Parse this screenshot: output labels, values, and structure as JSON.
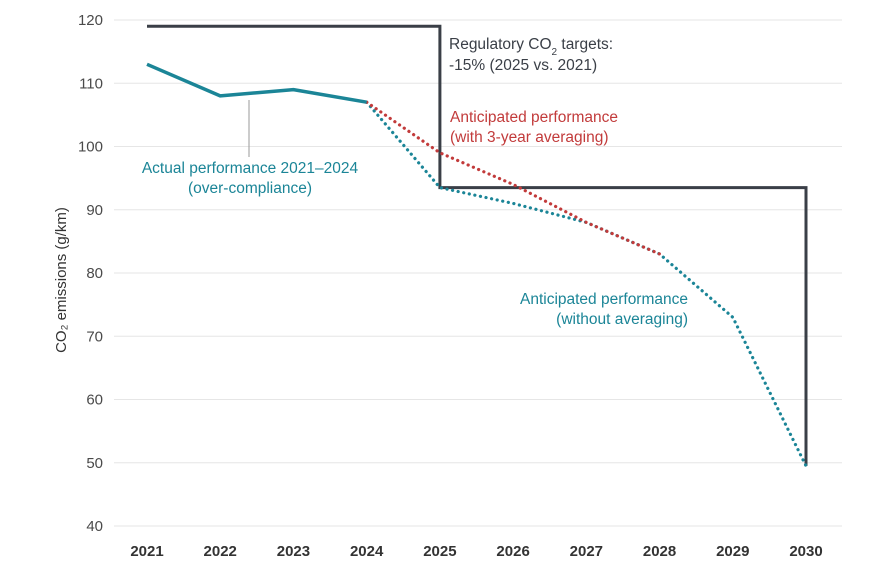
{
  "chart_data": {
    "type": "line",
    "ylabel": "CO₂ emissions (g/km)",
    "ylim": [
      40,
      120
    ],
    "yticks": [
      40,
      50,
      60,
      70,
      80,
      90,
      100,
      110,
      120
    ],
    "xticks": [
      2021,
      2022,
      2023,
      2024,
      2025,
      2026,
      2027,
      2028,
      2029,
      2030
    ],
    "grid": true,
    "colors": {
      "actual": "#1b8597",
      "averaging": "#c23b3b",
      "without": "#1b8597",
      "target": "#3a3f47"
    },
    "series": [
      {
        "key": "actual",
        "style": "solid",
        "x": [
          2021,
          2022,
          2023,
          2024
        ],
        "values": [
          113,
          108,
          109,
          107
        ]
      },
      {
        "key": "averaging",
        "style": "dotted",
        "x": [
          2024,
          2025,
          2026,
          2027,
          2028
        ],
        "values": [
          107,
          99,
          94,
          88,
          83
        ]
      },
      {
        "key": "without",
        "style": "dotted",
        "x": [
          2024,
          2025,
          2026,
          2027,
          2028,
          2029,
          2030
        ],
        "values": [
          107,
          93.5,
          91,
          88,
          83,
          73,
          49.5
        ]
      },
      {
        "key": "target",
        "style": "step",
        "x": [
          2021,
          2025,
          2025,
          2030,
          2030
        ],
        "values": [
          119,
          119,
          93.5,
          93.5,
          49.5
        ]
      }
    ],
    "annotations": {
      "target_line1": "Regulatory CO",
      "target_sub": "2",
      "target_line1_end": " targets:",
      "target_line2": "-15% (2025 vs. 2021)",
      "averaging_line1": "Anticipated performance",
      "averaging_line2": "(with 3-year averaging)",
      "actual_line1": "Actual performance 2021–2024",
      "actual_line2": "(over-compliance)",
      "without_line1": "Anticipated performance",
      "without_line2": "(without averaging)"
    }
  }
}
